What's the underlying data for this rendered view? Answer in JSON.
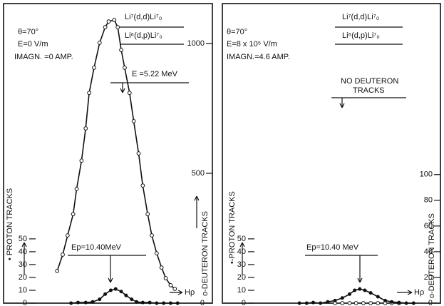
{
  "chart_data": [
    {
      "type": "scatter",
      "conditions": [
        "θ=70°",
        "E=0 V/m",
        "IMAGN. =0 AMP."
      ],
      "reactions": [
        "Li⁷(d,d)Li⁷₀",
        "Li⁶(d,p)Li⁷₀"
      ],
      "energy_label": "E =5.22 MeV",
      "peak_label": "Ep=10.40MeV",
      "x_label": "Hρ",
      "y_label": "• PROTON TRACKS",
      "y2_label": "o-DEUTERON TRACKS",
      "xlim": [
        0,
        30
      ],
      "ylim": [
        0,
        233
      ],
      "yticks": [
        0,
        10,
        20,
        30,
        40,
        50
      ],
      "y2lim": [
        0,
        1154
      ],
      "y2ticks": [
        0,
        500,
        1000
      ],
      "series": [
        {
          "axis": "y2",
          "marker": "open",
          "line": true,
          "color": "#111",
          "x": [
            7.7,
            8.5,
            9.2,
            10,
            10.5,
            11.2,
            11.8,
            12.3,
            13,
            13.8,
            14.6,
            15.1,
            15.9,
            16.4,
            16.9,
            17.4,
            18.1,
            18.7,
            19.4,
            20,
            20.7,
            21.3,
            22,
            22.7,
            23.3,
            24,
            24.6
          ],
          "values": [
            124,
            187,
            261,
            343,
            440,
            549,
            673,
            810,
            907,
            1003,
            1063,
            1085,
            1091,
            1063,
            975,
            907,
            810,
            701,
            577,
            453,
            343,
            261,
            192,
            137,
            96,
            69,
            55
          ]
        },
        {
          "axis": "y",
          "marker": "filled",
          "line": true,
          "color": "#111",
          "x": [
            9.7,
            10.7,
            11.8,
            12.8,
            13.8,
            14.6,
            15.4,
            16.1,
            16.9,
            17.6,
            18.4,
            19.1,
            20,
            21,
            22,
            23,
            24,
            25
          ],
          "values": [
            0,
            0.5,
            0.5,
            1,
            3,
            7,
            10,
            11,
            9,
            6,
            3,
            1,
            0.5,
            0.5,
            0,
            0,
            0,
            0
          ]
        }
      ]
    },
    {
      "type": "scatter",
      "conditions": [
        "θ=70°",
        "E=8 x 10⁵ V/m",
        "IMAGN.=4.6 AMP."
      ],
      "reactions": [
        "Li⁷(d,d)Li⁷₀",
        "Li⁶(d,p)Li⁷₀"
      ],
      "note": [
        "NO DEUTERON",
        "TRACKS"
      ],
      "peak_label": "Ep=10.40 MeV",
      "x_label": "Hρ",
      "y_label": "•-PROTON TRACKS",
      "y2_label": "o-DEUTERON TRACKS",
      "xlim": [
        0,
        30
      ],
      "ylim": [
        0,
        233
      ],
      "yticks": [
        0,
        10,
        20,
        30,
        40,
        50
      ],
      "y2lim": [
        0,
        233
      ],
      "y2ticks": [
        0,
        20,
        40,
        60,
        80,
        100
      ],
      "series": [
        {
          "axis": "y2",
          "marker": "open",
          "line": false,
          "color": "#111",
          "x": [
            15.5,
            16.5,
            17.5,
            18.4,
            19.4,
            20.4,
            21.4,
            22.4,
            23.3,
            24.3
          ],
          "values": [
            0,
            0,
            0,
            0,
            0,
            0,
            0,
            0,
            0,
            0
          ]
        },
        {
          "axis": "y",
          "marker": "filled",
          "line": true,
          "color": "#111",
          "x": [
            10.6,
            11.6,
            12.5,
            13.5,
            14.5,
            15.5,
            16.5,
            17.5,
            18.2,
            18.9,
            19.6,
            20.4,
            21.4,
            22.4,
            23.3,
            24.3,
            25.3,
            26.3
          ],
          "values": [
            0,
            0,
            0.5,
            0,
            1,
            2,
            4,
            7,
            10,
            11,
            10,
            8,
            5,
            2,
            1,
            0.5,
            0,
            0
          ]
        }
      ]
    }
  ]
}
